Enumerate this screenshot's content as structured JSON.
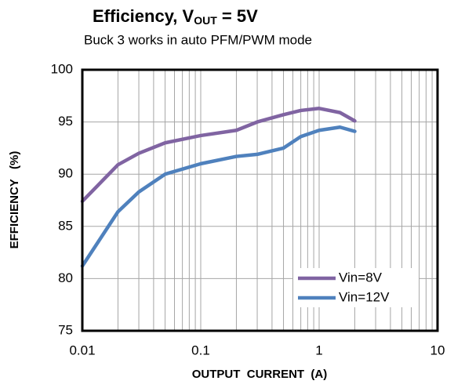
{
  "chart_data": {
    "type": "line",
    "title": [
      "Efficiency, V",
      "OUT",
      " = 5V"
    ],
    "subtitle": "Buck 3 works in auto PFM/PWM mode",
    "x_label": "OUTPUT  CURRENT  (A)",
    "y_label": "EFFICIENCY   (%)",
    "x": [
      0.01,
      0.02,
      0.03,
      0.05,
      0.1,
      0.2,
      0.3,
      0.5,
      0.7,
      1,
      1.5,
      2
    ],
    "series": [
      {
        "name": "Vin=8V",
        "color": "#8064a2",
        "values": [
          87.4,
          90.9,
          92.0,
          93.0,
          93.7,
          94.2,
          95.0,
          95.7,
          96.1,
          96.3,
          95.9,
          95.1
        ]
      },
      {
        "name": "Vin=12V",
        "color": "#4f81bd",
        "values": [
          81.2,
          86.4,
          88.3,
          90.0,
          91.0,
          91.7,
          91.9,
          92.5,
          93.6,
          94.2,
          94.5,
          94.1
        ]
      }
    ],
    "xlim": [
      0.01,
      10
    ],
    "x_log": true,
    "xticks": [
      0.01,
      0.1,
      1,
      10
    ],
    "x_minor_grid": [
      0.02,
      0.03,
      0.04,
      0.05,
      0.06,
      0.07,
      0.08,
      0.09,
      0.2,
      0.3,
      0.4,
      0.5,
      0.6,
      0.7,
      0.8,
      0.9,
      2,
      3,
      4,
      5,
      6,
      7,
      8,
      9
    ],
    "ylim": [
      75,
      100
    ],
    "yticks": [
      75,
      80,
      85,
      90,
      95,
      100
    ],
    "grid": true,
    "legend": "lower right"
  }
}
